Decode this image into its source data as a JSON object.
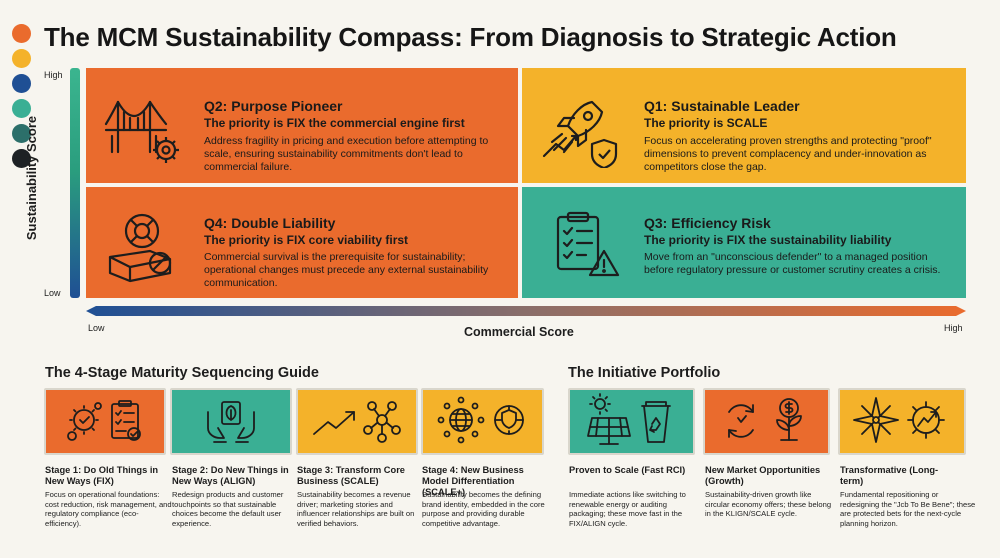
{
  "title": "The MCM Sustainability Compass: From Diagnosis to Strategic Action",
  "colors": {
    "orange": "#ea6b2d",
    "yellow": "#f4b22a",
    "teal": "#3aaf94",
    "navy": "#1f4f94",
    "ink": "#1d1d1d"
  },
  "swatches": [
    "#ea6b2d",
    "#f4b22a",
    "#1f4f94",
    "#3aaf94",
    "#2c6f6a",
    "#1d2124"
  ],
  "matrix": {
    "y_axis": {
      "label": "Sustainability Score",
      "high": "High",
      "low": "Low"
    },
    "x_axis": {
      "label": "Commercial Score",
      "low": "Low",
      "high": "High"
    },
    "q2": {
      "icon": "bridge-gear-icon",
      "title": "Q2: Purpose Pioneer",
      "priority": "The priority is FIX the commercial engine first",
      "desc": "Address fragility in pricing and execution before attempting to scale, ensuring sustainability commitments don't lead to commercial failure."
    },
    "q1": {
      "icon": "rocket-shield-icon",
      "title": "Q1: Sustainable Leader",
      "priority": "The priority is SCALE",
      "desc": "Focus on accelerating proven strengths and protecting \"proof\" dimensions to prevent complacency and under-innovation as competitors close the gap."
    },
    "q4": {
      "icon": "lifebuoy-brick-icon",
      "title": "Q4: Double Liability",
      "priority": "The priority is FIX core viability first",
      "desc": "Commercial survival is the prerequisite for sustainability; operational changes must precede any external sustainability communication."
    },
    "q3": {
      "icon": "clipboard-warning-icon",
      "title": "Q3: Efficiency Risk",
      "priority": "The priority is FIX the sustainability liability",
      "desc": "Move from an \"unconscious defender\" to a managed position before regulatory pressure or customer scrutiny creates a crisis."
    }
  },
  "maturity": {
    "title": "The 4-Stage Maturity Sequencing Guide",
    "stages": [
      {
        "icon": "gears-checklist-icon",
        "title": "Stage 1: Do Old Things in New Ways (FIX)",
        "desc": "Focus on operational foundations: cost reduction, risk management, and regulatory compliance (eco-efficiency)."
      },
      {
        "icon": "hands-leaf-icon",
        "title": "Stage 2: Do New Things in New Ways (ALIGN)",
        "desc": "Redesign products and customer touchpoints so that sustainable choices become the default user experience."
      },
      {
        "icon": "growth-network-icon",
        "title": "Stage 3: Transform Core Business (SCALE)",
        "desc": "Sustainability becomes a revenue driver; marketing stories and influencer relationships are built on verified behaviors."
      },
      {
        "icon": "globe-network-icon",
        "title": "Stage 4: New Business Model Differentiation (SCALE+)",
        "desc": "Sustainability becomes the defining brand identity, embedded in the core purpose and providing durable competitive advantage."
      }
    ]
  },
  "portfolio": {
    "title": "The Initiative Portfolio",
    "items": [
      {
        "icon": "solar-recycle-icon",
        "title": "Proven to Scale (Fast RCI)",
        "desc": "Immediate actions like switching to renewable energy or auditing packaging; these move fast in the FIX/ALIGN cycle."
      },
      {
        "icon": "cycle-money-plant-icon",
        "title": "New Market Opportunities (Growth)",
        "desc": "Sustainability-driven growth like circular economy offers; these belong in the KLIGN/SCALE cycle."
      },
      {
        "icon": "compass-gear-icon",
        "title": "Transformative (Long-term)",
        "desc": "Fundamental repositioning or redesigning the \"Jcb To Be Bene\"; these are protected bets for the next-cycle planning horizon."
      }
    ]
  }
}
